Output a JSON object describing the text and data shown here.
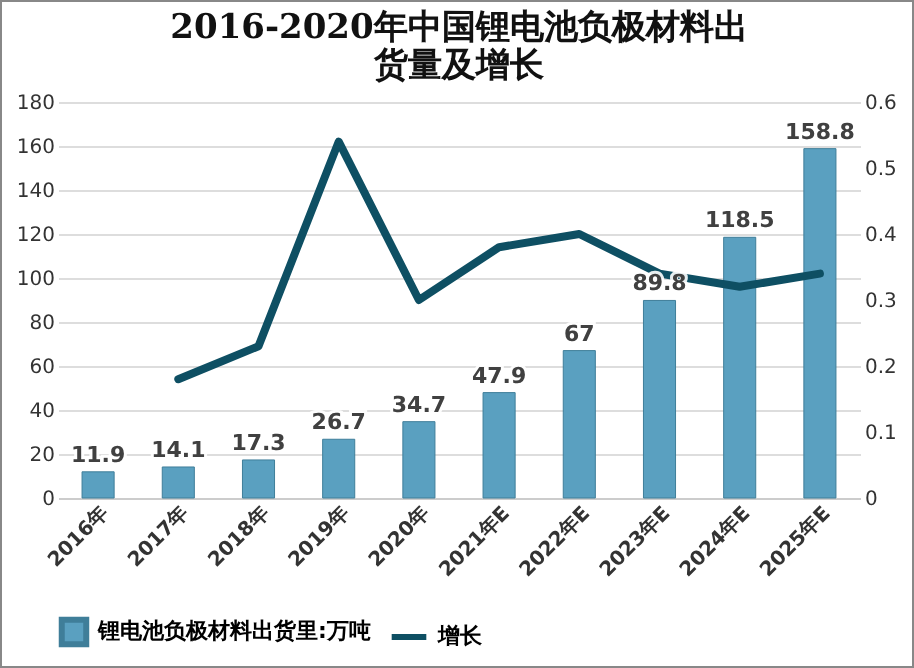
{
  "chart_data": {
    "type": "bar",
    "title": "2016-2020年中国锂电池负极材料出货量及增长",
    "categories": [
      "2016年",
      "2017年",
      "2018年",
      "2019年",
      "2020年",
      "2021年E",
      "2022年E",
      "2023年E",
      "2024年E",
      "2025年E"
    ],
    "series": [
      {
        "name": "锂电池负极材料出货里:万吨",
        "color": "#5aa0c0",
        "values": [
          11.9,
          14.1,
          17.3,
          26.7,
          34.7,
          47.9,
          67,
          89.8,
          118.5,
          158.8
        ],
        "value_labels": [
          "11.9",
          "14.1",
          "17.3",
          "26.7",
          "34.7",
          "47.9",
          "67",
          "89.8",
          "118.5",
          "158.8"
        ]
      },
      {
        "name": "增长",
        "type": "line",
        "axis": "y2",
        "color": "#0e4f63",
        "values": [
          null,
          0.18,
          0.23,
          0.54,
          0.3,
          0.38,
          0.4,
          0.34,
          0.32,
          0.34
        ]
      }
    ],
    "ylim": [
      0,
      180
    ],
    "yticks": [
      0,
      20,
      40,
      60,
      80,
      100,
      120,
      140,
      160,
      180
    ],
    "y2lim": [
      0,
      0.6
    ],
    "y2ticks": [
      0,
      0.1,
      0.2,
      0.3,
      0.4,
      0.5,
      0.6
    ],
    "grid": "y",
    "legend": "bottom"
  }
}
